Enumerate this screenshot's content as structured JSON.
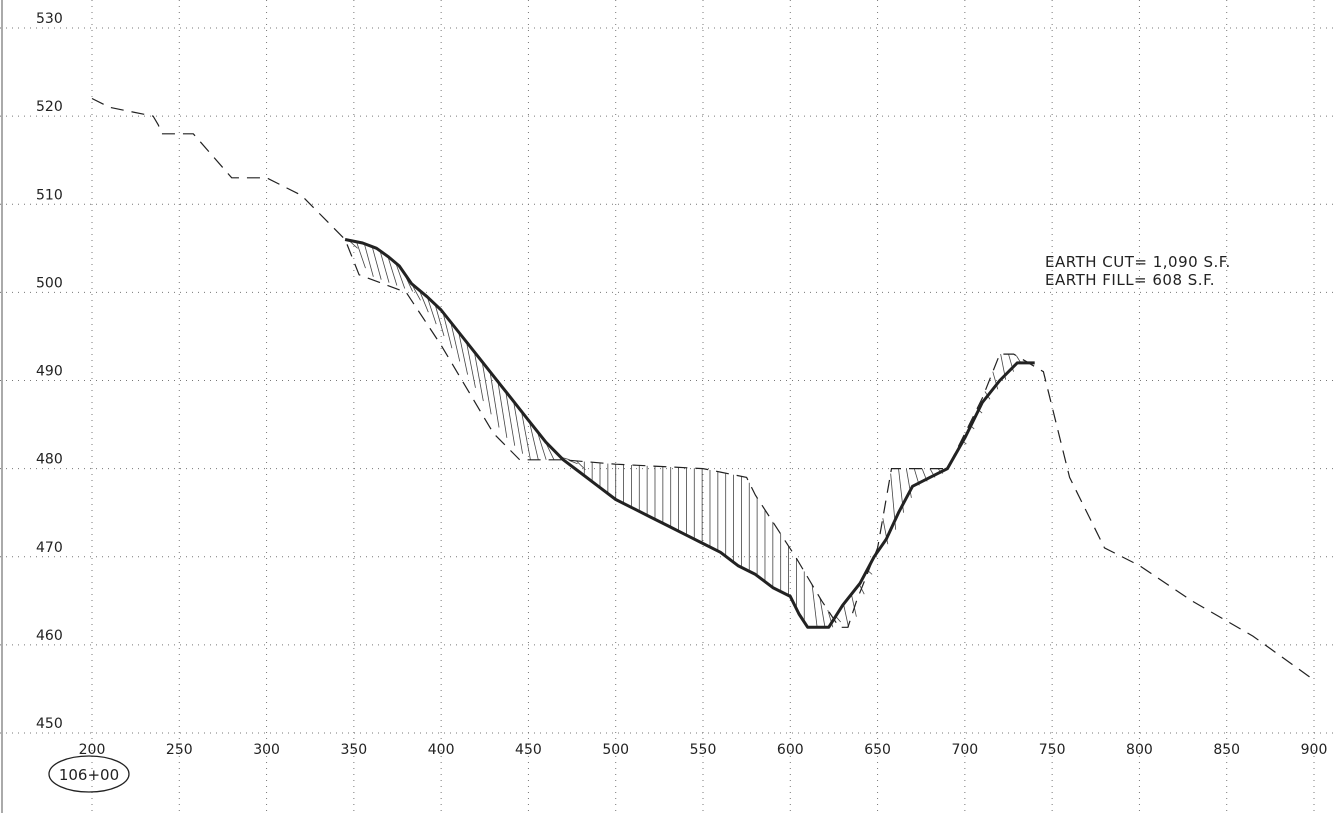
{
  "chart_data": {
    "type": "line",
    "title": "",
    "xlabel": "",
    "ylabel": "",
    "xlim": [
      200,
      900
    ],
    "ylim": [
      450,
      530
    ],
    "x_ticks": [
      200,
      250,
      300,
      350,
      400,
      450,
      500,
      550,
      600,
      650,
      700,
      750,
      800,
      850,
      900
    ],
    "y_ticks": [
      450,
      460,
      470,
      480,
      490,
      500,
      510,
      520,
      530
    ],
    "x_tick_labels": [
      "200",
      "250",
      "300",
      "350",
      "400",
      "450",
      "500",
      "550",
      "600",
      "650",
      "700",
      "750",
      "800",
      "850",
      "900"
    ],
    "y_tick_labels": [
      "450",
      "460",
      "470",
      "480",
      "490",
      "500",
      "510",
      "520",
      "530"
    ],
    "grid": true,
    "station_label": "106+00",
    "annotations": [
      "EARTH  CUT=  1,090  S.F.",
      "EARTH  FILL=  608  S.F."
    ],
    "series": [
      {
        "style": "dashed",
        "x": [
          200,
          210,
          235,
          238,
          240,
          258,
          280,
          300,
          320,
          345,
          353,
          380,
          400,
          430,
          445,
          470,
          500,
          550,
          560,
          575,
          580,
          603,
          618,
          628,
          633,
          638,
          650,
          658,
          670,
          680,
          690,
          700,
          710,
          720,
          728,
          745,
          760,
          780,
          800,
          830,
          865,
          900
        ],
        "y": [
          522,
          521,
          520,
          519,
          518,
          518,
          513,
          513,
          511,
          506,
          502,
          500,
          494,
          484,
          481,
          481,
          480.5,
          480,
          479.6,
          479,
          477,
          470,
          465,
          462,
          462,
          465,
          471,
          480,
          480,
          480,
          480,
          484,
          488,
          493,
          493,
          491,
          479,
          471,
          469,
          465,
          461,
          456
        ]
      },
      {
        "style": "solid",
        "x": [
          345,
          355,
          363,
          370,
          376,
          383,
          392,
          400,
          410,
          420,
          430,
          440,
          450,
          460,
          470,
          480,
          490,
          500,
          510,
          520,
          530,
          540,
          550,
          560,
          570,
          580,
          590,
          600,
          605,
          610,
          618,
          622,
          630,
          640,
          648,
          655,
          662,
          670,
          680,
          690,
          700,
          710,
          720,
          730,
          740
        ],
        "y": [
          506,
          505.6,
          505,
          504,
          503,
          501,
          499.5,
          498,
          495.5,
          493,
          490.5,
          488,
          485.5,
          483,
          481,
          479.5,
          478,
          476.5,
          475.5,
          474.5,
          473.5,
          472.5,
          471.5,
          470.5,
          469,
          468,
          466.5,
          465.5,
          463.5,
          462,
          462,
          462,
          464.5,
          467,
          470,
          472,
          475,
          478,
          479,
          480,
          483.5,
          487.5,
          490,
          492,
          492
        ]
      }
    ]
  }
}
